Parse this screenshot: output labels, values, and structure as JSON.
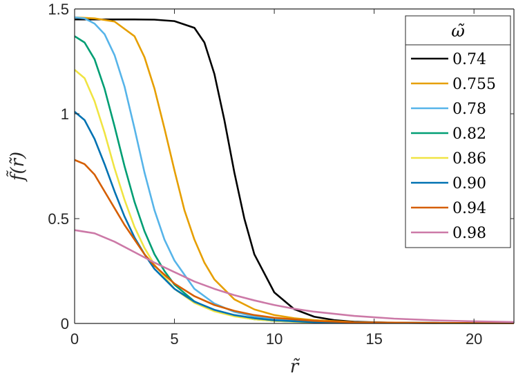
{
  "chart_data": {
    "type": "line",
    "xlabel": "r̃",
    "ylabel": "f̃(r̃)",
    "xlim": [
      0,
      22
    ],
    "ylim": [
      0,
      1.5
    ],
    "x_ticks": [
      "0",
      "5",
      "10",
      "15",
      "20"
    ],
    "y_ticks": [
      "0",
      "0.5",
      "1",
      "1.5"
    ],
    "grid": false,
    "legend": {
      "title": "ω̃",
      "position": "top-right"
    },
    "series": [
      {
        "name": "0.74",
        "color": "#000000",
        "x": [
          0,
          1,
          2,
          3,
          4,
          5,
          6,
          6.5,
          7,
          7.5,
          8,
          8.5,
          9,
          10,
          11,
          12,
          13,
          14,
          16,
          18,
          22
        ],
        "y": [
          1.45,
          1.45,
          1.45,
          1.45,
          1.449,
          1.442,
          1.41,
          1.34,
          1.19,
          0.97,
          0.72,
          0.5,
          0.33,
          0.148,
          0.068,
          0.032,
          0.016,
          0.008,
          0.003,
          0.002,
          0.001
        ]
      },
      {
        "name": "0.755",
        "color": "#E69F00",
        "x": [
          0,
          1,
          2,
          3,
          3.5,
          4,
          4.5,
          5,
          5.5,
          6,
          6.5,
          7,
          8,
          9,
          10,
          11,
          12,
          14,
          16,
          22
        ],
        "y": [
          1.46,
          1.455,
          1.44,
          1.37,
          1.27,
          1.12,
          0.93,
          0.73,
          0.54,
          0.4,
          0.29,
          0.21,
          0.115,
          0.067,
          0.04,
          0.025,
          0.016,
          0.006,
          0.003,
          0.001
        ]
      },
      {
        "name": "0.78",
        "color": "#56B4E9",
        "x": [
          0,
          0.5,
          1,
          1.5,
          2,
          2.5,
          3,
          3.5,
          4,
          4.5,
          5,
          6,
          7,
          8,
          9,
          10,
          12,
          14,
          22
        ],
        "y": [
          1.46,
          1.455,
          1.43,
          1.38,
          1.28,
          1.13,
          0.93,
          0.72,
          0.54,
          0.4,
          0.3,
          0.165,
          0.095,
          0.055,
          0.033,
          0.02,
          0.008,
          0.004,
          0.001
        ]
      },
      {
        "name": "0.82",
        "color": "#009E73",
        "x": [
          0,
          0.5,
          1,
          1.5,
          2,
          2.5,
          3,
          3.5,
          4,
          4.5,
          5,
          6,
          7,
          8,
          9,
          10,
          12,
          22
        ],
        "y": [
          1.37,
          1.34,
          1.26,
          1.12,
          0.94,
          0.75,
          0.58,
          0.44,
          0.33,
          0.25,
          0.185,
          0.105,
          0.06,
          0.035,
          0.02,
          0.012,
          0.005,
          0.001
        ]
      },
      {
        "name": "0.86",
        "color": "#F0E442",
        "x": [
          0,
          0.5,
          1,
          1.5,
          2,
          2.5,
          3,
          3.5,
          4,
          5,
          6,
          7,
          8,
          9,
          10,
          12,
          22
        ],
        "y": [
          1.21,
          1.17,
          1.06,
          0.91,
          0.74,
          0.59,
          0.46,
          0.36,
          0.28,
          0.165,
          0.098,
          0.058,
          0.034,
          0.02,
          0.012,
          0.004,
          0.001
        ]
      },
      {
        "name": "0.90",
        "color": "#0072B2",
        "x": [
          0,
          0.5,
          1,
          1.5,
          2,
          2.5,
          3,
          3.5,
          4,
          5,
          6,
          7,
          8,
          9,
          10,
          12,
          22
        ],
        "y": [
          1.01,
          0.97,
          0.88,
          0.76,
          0.63,
          0.51,
          0.41,
          0.33,
          0.26,
          0.165,
          0.104,
          0.065,
          0.04,
          0.025,
          0.015,
          0.006,
          0.001
        ]
      },
      {
        "name": "0.94",
        "color": "#D55E00",
        "x": [
          0,
          0.5,
          1,
          1.5,
          2,
          2.5,
          3,
          3.5,
          4,
          5,
          6,
          7,
          8,
          9,
          10,
          12,
          14,
          22
        ],
        "y": [
          0.78,
          0.76,
          0.71,
          0.63,
          0.55,
          0.47,
          0.4,
          0.33,
          0.275,
          0.19,
          0.13,
          0.088,
          0.06,
          0.04,
          0.027,
          0.012,
          0.005,
          0.001
        ]
      },
      {
        "name": "0.98",
        "color": "#CC79A7",
        "x": [
          0,
          1,
          2,
          3,
          4,
          5,
          6,
          7,
          8,
          9,
          10,
          11,
          12,
          14,
          16,
          18,
          20,
          22
        ],
        "y": [
          0.445,
          0.43,
          0.39,
          0.34,
          0.29,
          0.245,
          0.2,
          0.165,
          0.135,
          0.11,
          0.088,
          0.07,
          0.056,
          0.036,
          0.023,
          0.015,
          0.01,
          0.007
        ]
      }
    ]
  }
}
